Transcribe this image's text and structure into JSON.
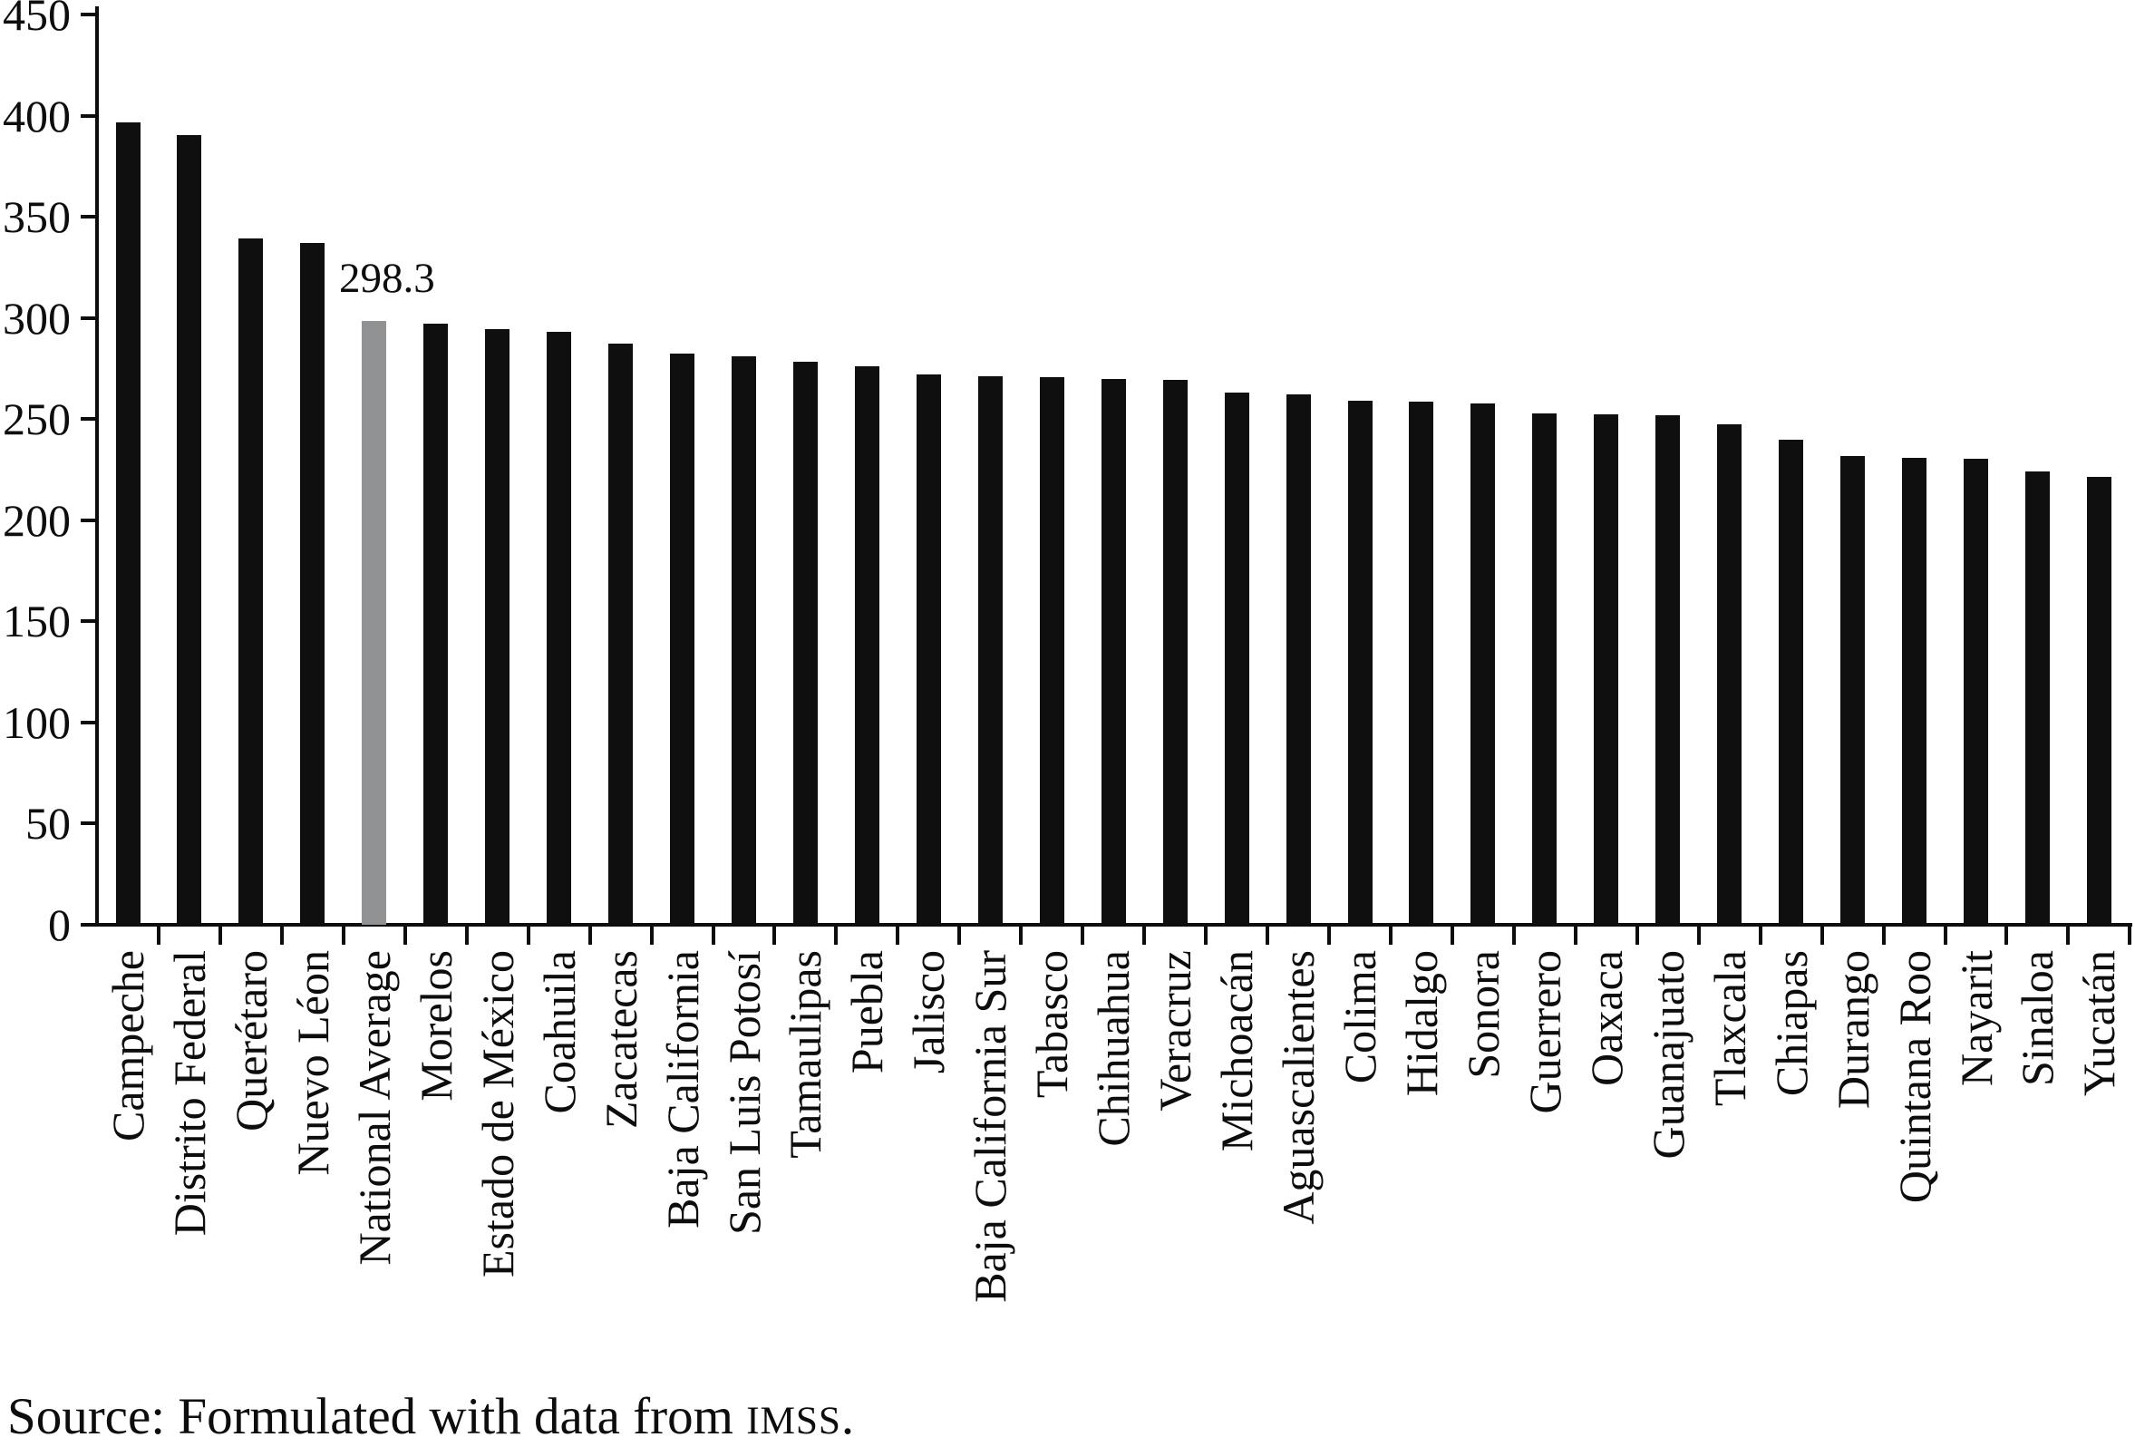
{
  "chart_data": {
    "type": "bar",
    "title": "",
    "xlabel": "",
    "ylabel": "",
    "ylim": [
      0,
      450
    ],
    "yticks": [
      450,
      400,
      350,
      300,
      250,
      200,
      150,
      100,
      50,
      0
    ],
    "grid": false,
    "legend": "none",
    "bar_color": "#0f0f0f",
    "categories": [
      "Campeche",
      "Distrito Federal",
      "Querétaro",
      "Nuevo Léon",
      "National Average",
      "Morelos",
      "Estado de México",
      "Coahuila",
      "Zacatecas",
      "Baja California",
      "San Luis Potosí",
      "Tamaulipas",
      "Puebla",
      "Jalisco",
      "Baja California Sur",
      "Tabasco",
      "Chihuahua",
      "Veracruz",
      "Michoacán",
      "Aguascalientes",
      "Colima",
      "Hidalgo",
      "Sonora",
      "Guerrero",
      "Oaxaca",
      "Guanajuato",
      "Tlaxcala",
      "Chiapas",
      "Durango",
      "Quintana Roo",
      "Nayarit",
      "Sinaloa",
      "Yucatán"
    ],
    "values": [
      396.5,
      390.5,
      339.5,
      337,
      298.3,
      297,
      294.5,
      293,
      287.5,
      282.5,
      281,
      278.5,
      276,
      272,
      271,
      270.5,
      270,
      269.5,
      263,
      262,
      259,
      258.5,
      257.5,
      253,
      252.5,
      252,
      247.5,
      240,
      231.5,
      231,
      230.5,
      224,
      221.5
    ],
    "highlight": {
      "index": 4,
      "category": "National Average",
      "color": "#909294"
    },
    "annotation": {
      "text": "298.3",
      "for": "National Average"
    },
    "source_note": {
      "prefix": "Source: Formulated with data from ",
      "org": "IMSS",
      "suffix": "."
    }
  }
}
